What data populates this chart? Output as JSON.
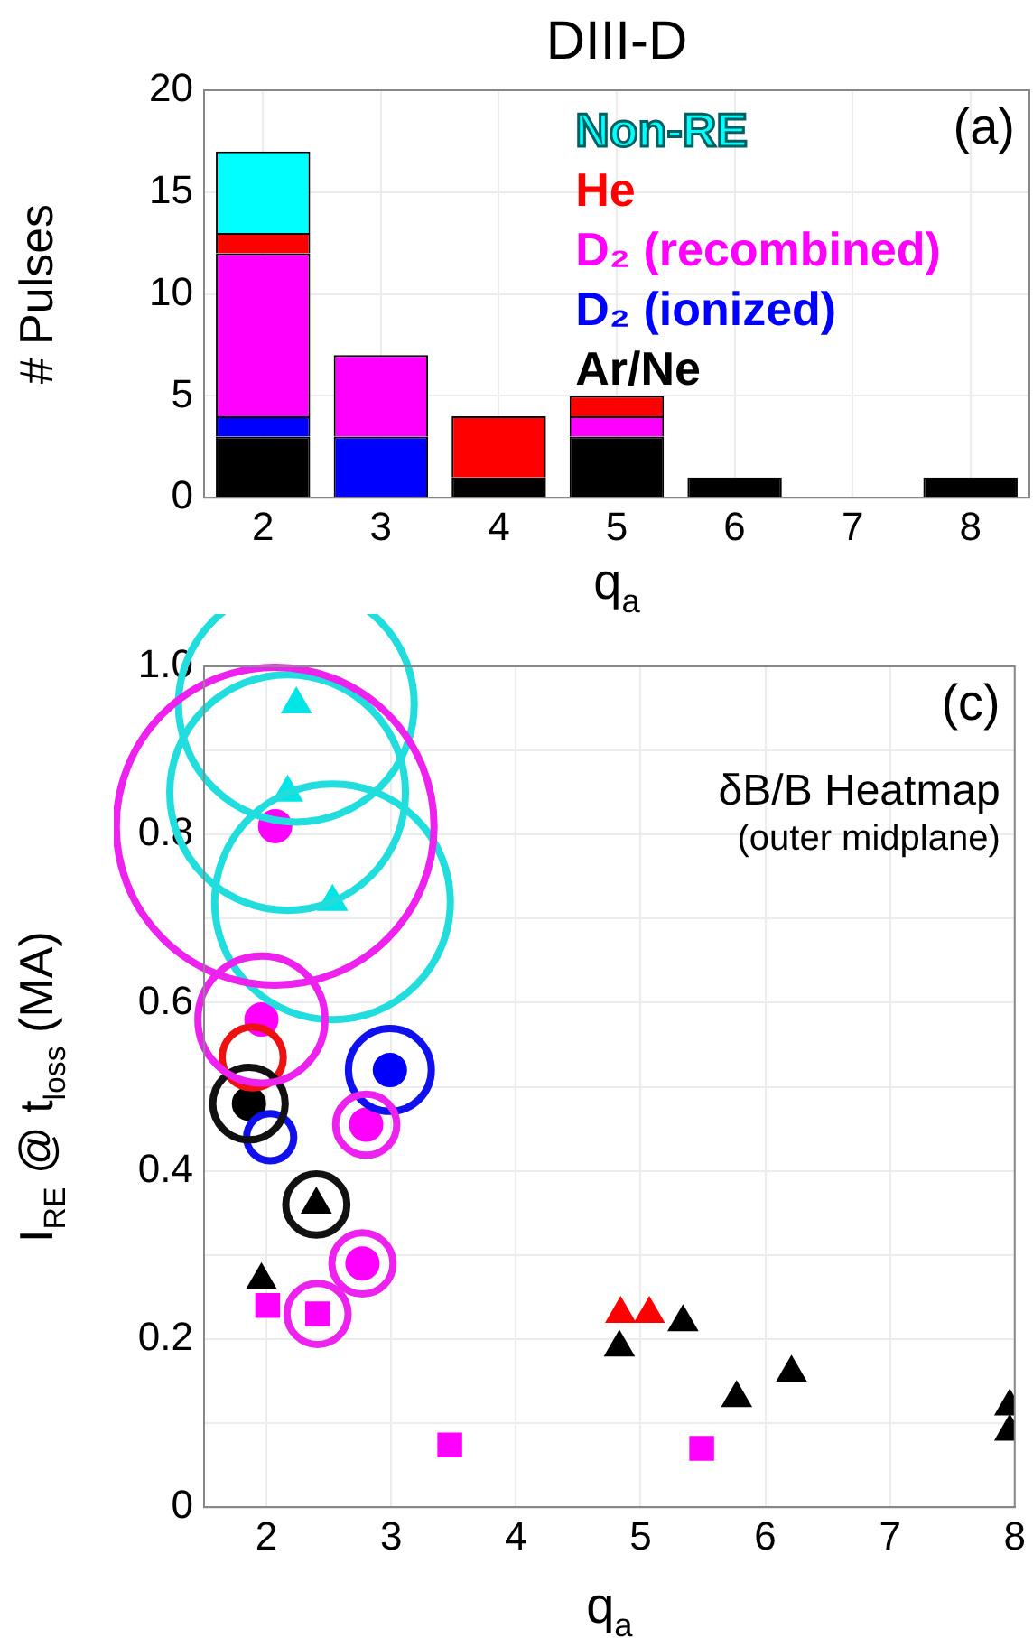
{
  "chart_data": [
    {
      "type": "bar",
      "title": "DIII-D",
      "xlabel": "q$_{a}$",
      "ylabel": "# Pulses",
      "stacked": true,
      "categories": [
        "2",
        "3",
        "4",
        "5",
        "6",
        "7",
        "8"
      ],
      "series": [
        {
          "name": "Ar/Ne",
          "color": "#000000",
          "values": [
            3,
            0,
            1,
            3,
            1,
            0,
            1
          ]
        },
        {
          "name": "D₂ (ionized)",
          "color": "#0000ff",
          "values": [
            1,
            3,
            0,
            0,
            0,
            0,
            0
          ]
        },
        {
          "name": "D₂ (recombined)",
          "color": "#ff00ff",
          "values": [
            8,
            4,
            0,
            1,
            0,
            0,
            0
          ]
        },
        {
          "name": "He",
          "color": "#ff0000",
          "values": [
            1,
            0,
            3,
            1,
            0,
            0,
            0
          ]
        },
        {
          "name": "Non-RE",
          "color": "#00ffff",
          "values": [
            4,
            0,
            0,
            0,
            0,
            0,
            0
          ]
        }
      ],
      "ylim": [
        0,
        20
      ],
      "yticks": [
        0,
        5,
        10,
        15,
        20
      ],
      "grid": true,
      "legend": "top right",
      "annotations": [
        "(a)"
      ]
    },
    {
      "type": "scatter",
      "xlabel": "q$_{a}$",
      "ylabel": "I$_{RE}$ @ t$_{loss}$ (MA)",
      "xlim": [
        1.5,
        8
      ],
      "xticks": [
        2,
        3,
        4,
        5,
        6,
        7,
        8
      ],
      "ylim": [
        0,
        1
      ],
      "yticks": [
        0,
        {
          "value": 0.1,
          "label": null
        },
        0.2,
        {
          "value": 0.3,
          "label": null
        },
        0.4,
        {
          "value": 0.5,
          "label": null
        },
        0.6,
        {
          "value": 0.7,
          "label": null
        },
        0.8,
        {
          "value": 0.9,
          "label": null
        },
        {
          "value": 1,
          "label": "1.0"
        }
      ],
      "grid": true,
      "annotations": [
        "(c)",
        "δB/B Heatmap",
        "(outer midplane)"
      ],
      "series": [
        {
          "color": "#ff00ff",
          "marker": "circle",
          "x": [
            2.07,
            1.96,
            2.77,
            2.8
          ],
          "values": [
            0.81,
            0.58,
            0.29,
            0.455
          ]
        },
        {
          "color": "#ff00ff",
          "marker": "square",
          "x": [
            2.01,
            2.41,
            3.47,
            5.49
          ],
          "values": [
            0.24,
            0.23,
            0.074,
            0.07
          ]
        },
        {
          "color": "#00e5e5",
          "marker": "triangle",
          "x": [
            2.24,
            2.17,
            2.53
          ],
          "values": [
            0.955,
            0.85,
            0.72
          ]
        },
        {
          "color": "#000000",
          "marker": "triangle",
          "x": [
            1.96,
            5.34,
            5.77,
            6.21,
            7.96,
            7.96,
            2.4,
            4.83
          ],
          "values": [
            0.27,
            0.22,
            0.13,
            0.16,
            0.12,
            0.09,
            0.36,
            0.19
          ]
        },
        {
          "color": "#000000",
          "marker": "circle",
          "x": [
            1.86
          ],
          "values": [
            0.48
          ]
        },
        {
          "color": "#ff0000",
          "marker": "triangle",
          "x": [
            4.84,
            5.07
          ],
          "values": [
            0.23,
            0.23
          ]
        },
        {
          "color": "#0000ff",
          "marker": "circle",
          "x": [
            2.99
          ],
          "values": [
            0.52
          ]
        },
        {
          "type": "bubble",
          "color": "#ee22ee",
          "x": [
            2.07,
            1.96,
            2.8,
            2.41,
            2.77
          ],
          "values": [
            0.81,
            0.58,
            0.455,
            0.23,
            0.29
          ],
          "sizes": [
            1,
            0.16,
            0.037,
            0.037,
            0.037
          ]
        },
        {
          "type": "bubble",
          "color": "#22dddd",
          "x": [
            2.24,
            2.17,
            2.53
          ],
          "values": [
            0.955,
            0.85,
            0.72
          ],
          "sizes": [
            0.55,
            0.55,
            0.55
          ]
        },
        {
          "type": "bubble",
          "color": "#111111",
          "x": [
            1.86,
            2.4
          ],
          "values": [
            0.48,
            0.36
          ],
          "sizes": [
            0.052,
            0.037
          ]
        },
        {
          "type": "bubble",
          "color": "#1010ee",
          "x": [
            2.99,
            2.03
          ],
          "values": [
            0.52,
            0.44
          ],
          "sizes": [
            0.068,
            0.022
          ]
        },
        {
          "type": "bubble",
          "color": "#ee1111",
          "x": [
            1.89
          ],
          "values": [
            0.535
          ],
          "sizes": [
            0.037
          ]
        }
      ]
    }
  ]
}
